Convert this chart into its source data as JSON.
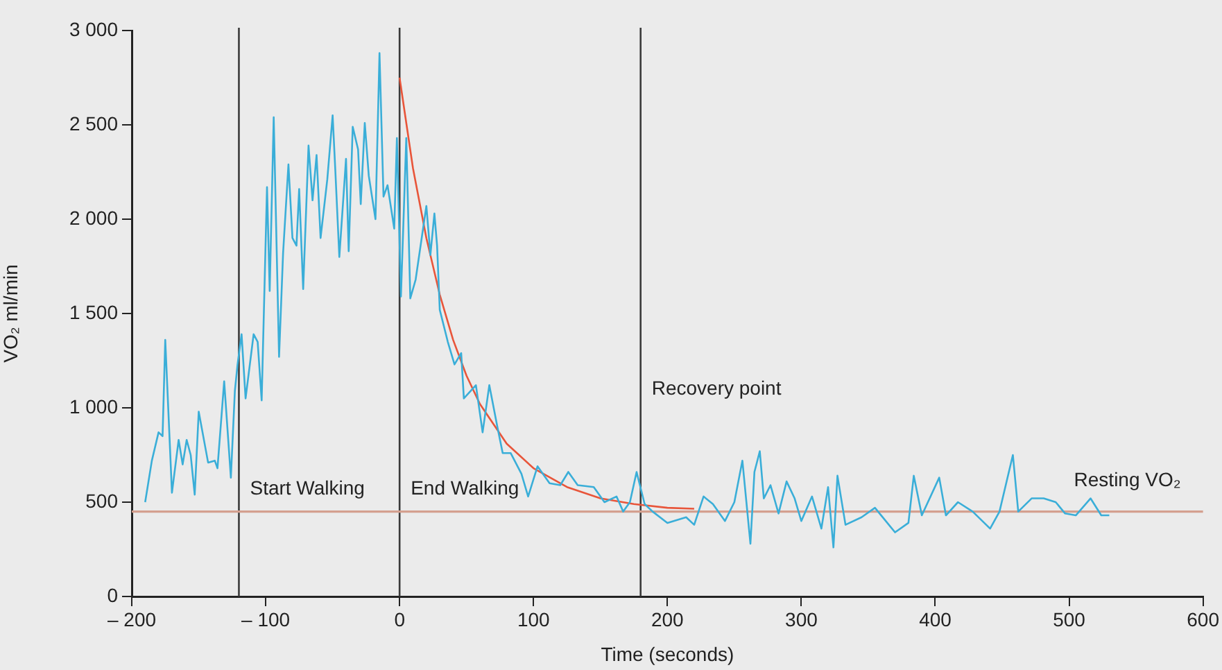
{
  "chart_data": {
    "type": "line",
    "xlabel": "Time (seconds)",
    "ylabel": "VO₂ ml/min",
    "xlim": [
      -200,
      600
    ],
    "xticks": [
      {
        "value": -200,
        "label": "– 200"
      },
      {
        "value": -100,
        "label": "– 100"
      },
      0,
      100,
      200,
      300,
      400,
      500,
      600
    ],
    "ylim": [
      0,
      3000
    ],
    "yticks": [
      0,
      500,
      {
        "value": 1000,
        "label": "1 000"
      },
      {
        "value": 1500,
        "label": "1 500"
      },
      {
        "value": 2000,
        "label": "2 000"
      },
      {
        "value": 2500,
        "label": "2 500"
      },
      {
        "value": 3000,
        "label": "3 000"
      }
    ],
    "grid": false,
    "legend": false,
    "marker": "none",
    "line_style": "solid",
    "series": [
      {
        "color": "#3aaed8",
        "x": [
          -190,
          -185,
          -180,
          -177,
          -175,
          -170,
          -165,
          -162,
          -159,
          -156,
          -153,
          -150,
          -143,
          -138,
          -136,
          -131,
          -126,
          -123,
          -121,
          -118,
          -115,
          -109,
          -106,
          -103,
          -99,
          -97,
          -94,
          -90,
          -87,
          -83,
          -80,
          -77,
          -75,
          -72,
          -68,
          -65,
          -62,
          -59,
          -54,
          -50,
          -48,
          -45,
          -40,
          -38,
          -35,
          -31,
          -29,
          -26,
          -23,
          -18,
          -15,
          -12,
          -9,
          -4,
          -2,
          1,
          5,
          8,
          12,
          20,
          23,
          26,
          28,
          30,
          36,
          41,
          46,
          48,
          57,
          62,
          67,
          73,
          77,
          83,
          91,
          96,
          103,
          112,
          120,
          126,
          133,
          145,
          153,
          162,
          167,
          172,
          177,
          183,
          189,
          200,
          214,
          220,
          227,
          234,
          243,
          250,
          256,
          262,
          265,
          269,
          272,
          277,
          283,
          289,
          295,
          300,
          308,
          315,
          320,
          324,
          327,
          333,
          345,
          355,
          370,
          380,
          384,
          390,
          403,
          408,
          417,
          428,
          441,
          448,
          458,
          462,
          472,
          481,
          490,
          497,
          505,
          516,
          524,
          530
        ],
        "values": [
          500,
          720,
          870,
          850,
          1360,
          550,
          830,
          700,
          830,
          750,
          540,
          980,
          710,
          720,
          680,
          1140,
          630,
          1090,
          1230,
          1390,
          1050,
          1390,
          1350,
          1040,
          2170,
          1620,
          2540,
          1270,
          1820,
          2290,
          1900,
          1860,
          2160,
          1630,
          2390,
          2100,
          2340,
          1900,
          2210,
          2550,
          2260,
          1800,
          2320,
          1830,
          2490,
          2370,
          2080,
          2510,
          2230,
          2000,
          2880,
          2120,
          2180,
          1950,
          2430,
          1590,
          2430,
          1580,
          1680,
          2070,
          1810,
          2030,
          1860,
          1520,
          1350,
          1230,
          1290,
          1050,
          1120,
          870,
          1120,
          900,
          760,
          760,
          650,
          530,
          690,
          600,
          590,
          660,
          590,
          580,
          500,
          530,
          450,
          500,
          660,
          490,
          450,
          390,
          420,
          380,
          530,
          490,
          400,
          500,
          720,
          280,
          660,
          770,
          520,
          590,
          440,
          610,
          520,
          400,
          530,
          360,
          580,
          260,
          640,
          380,
          420,
          470,
          340,
          390,
          640,
          430,
          630,
          430,
          500,
          450,
          360,
          450,
          750,
          450,
          520,
          520,
          500,
          440,
          430,
          520,
          430,
          430
        ]
      },
      {
        "color": "#e8553a",
        "x": [
          0,
          10,
          20,
          30,
          40,
          50,
          60,
          80,
          100,
          125,
          150,
          175,
          200,
          220
        ],
        "values": [
          2750,
          2270,
          1900,
          1600,
          1360,
          1170,
          1020,
          810,
          680,
          580,
          520,
          490,
          470,
          465
        ]
      }
    ],
    "ref_lines": [
      {
        "axis": "x",
        "value": -120,
        "color": "#3a3a3a"
      },
      {
        "axis": "x",
        "value": 0,
        "color": "#3a3a3a"
      },
      {
        "axis": "x",
        "value": 180,
        "color": "#3a3a3a"
      },
      {
        "axis": "y",
        "value": 450,
        "color": "#d4a08f",
        "label": "Resting VO₂"
      }
    ],
    "annotations": [
      {
        "text": "Start Walking",
        "x": -120,
        "y": 570
      },
      {
        "text": "End Walking",
        "x": 0,
        "y": 570
      },
      {
        "text": "Recovery point",
        "x": 180,
        "y": 1100
      }
    ]
  }
}
